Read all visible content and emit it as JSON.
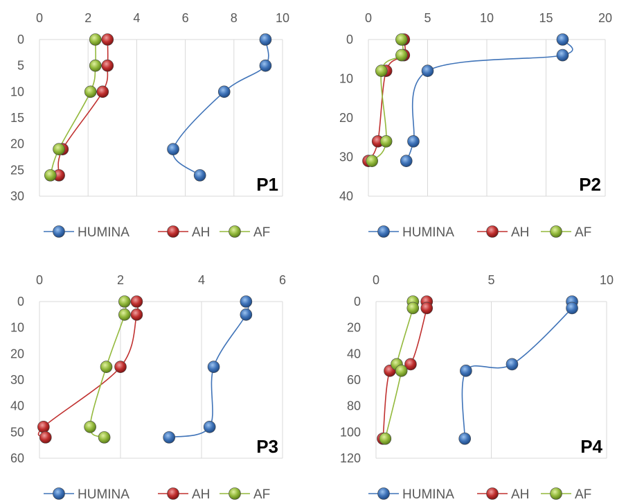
{
  "series_names": [
    "HUMINA",
    "AH",
    "AF"
  ],
  "colors": {
    "HUMINA": "#3f73b8",
    "AH": "#c0302f",
    "AF": "#93b93c",
    "grid": "#d9d9d9"
  },
  "chart_data": [
    {
      "type": "scatter",
      "panel_label": "P1",
      "x_axis": {
        "position": "top",
        "min": 0,
        "max": 10,
        "ticks": [
          0,
          2,
          4,
          6,
          8,
          10
        ]
      },
      "y_axis": {
        "inverted": true,
        "min": 0,
        "max": 30,
        "ticks": [
          0,
          5,
          10,
          15,
          20,
          25,
          30
        ]
      },
      "grid": "vertical",
      "legend": "bottom",
      "series": [
        {
          "name": "HUMINA",
          "points": [
            [
              9.3,
              0
            ],
            [
              9.3,
              5
            ],
            [
              7.6,
              10
            ],
            [
              5.5,
              21
            ],
            [
              6.6,
              26
            ]
          ]
        },
        {
          "name": "AH",
          "points": [
            [
              2.8,
              0
            ],
            [
              2.8,
              5
            ],
            [
              2.6,
              10
            ],
            [
              0.95,
              21
            ],
            [
              0.8,
              26
            ]
          ]
        },
        {
          "name": "AF",
          "points": [
            [
              2.3,
              0
            ],
            [
              2.3,
              5
            ],
            [
              2.1,
              10
            ],
            [
              0.8,
              21
            ],
            [
              0.45,
              26
            ]
          ]
        }
      ]
    },
    {
      "type": "scatter",
      "panel_label": "P2",
      "x_axis": {
        "position": "top",
        "min": 0,
        "max": 20,
        "ticks": [
          0,
          5,
          10,
          15,
          20
        ]
      },
      "y_axis": {
        "inverted": true,
        "min": 0,
        "max": 40,
        "ticks": [
          0,
          10,
          20,
          30,
          40
        ]
      },
      "grid": "vertical",
      "legend": "bottom",
      "series": [
        {
          "name": "HUMINA",
          "points": [
            [
              16.4,
              0
            ],
            [
              16.4,
              4
            ],
            [
              5.0,
              8
            ],
            [
              3.8,
              26
            ],
            [
              3.2,
              31
            ]
          ]
        },
        {
          "name": "AH",
          "points": [
            [
              3.0,
              0
            ],
            [
              3.0,
              4
            ],
            [
              1.5,
              8
            ],
            [
              0.8,
              26
            ],
            [
              0.0,
              31
            ]
          ]
        },
        {
          "name": "AF",
          "points": [
            [
              2.8,
              0
            ],
            [
              2.8,
              4
            ],
            [
              1.1,
              8
            ],
            [
              1.5,
              26
            ],
            [
              0.3,
              31
            ]
          ]
        }
      ]
    },
    {
      "type": "scatter",
      "panel_label": "P3",
      "x_axis": {
        "position": "top",
        "min": 0,
        "max": 6,
        "ticks": [
          0,
          2,
          4,
          6
        ]
      },
      "y_axis": {
        "inverted": true,
        "min": 0,
        "max": 60,
        "ticks": [
          0,
          10,
          20,
          30,
          40,
          50,
          60
        ]
      },
      "grid": "vertical",
      "legend": "bottom",
      "series": [
        {
          "name": "HUMINA",
          "points": [
            [
              5.1,
              0
            ],
            [
              5.1,
              5
            ],
            [
              4.3,
              25
            ],
            [
              4.2,
              48
            ],
            [
              3.2,
              52
            ]
          ]
        },
        {
          "name": "AH",
          "points": [
            [
              2.4,
              0
            ],
            [
              2.4,
              5
            ],
            [
              2.0,
              25
            ],
            [
              0.1,
              48
            ],
            [
              0.15,
              52
            ]
          ]
        },
        {
          "name": "AF",
          "points": [
            [
              2.1,
              0
            ],
            [
              2.1,
              5
            ],
            [
              1.65,
              25
            ],
            [
              1.25,
              48
            ],
            [
              1.6,
              52
            ]
          ]
        }
      ]
    },
    {
      "type": "scatter",
      "panel_label": "P4",
      "x_axis": {
        "position": "top",
        "min": 0,
        "max": 10,
        "ticks": [
          0,
          5,
          10
        ]
      },
      "y_axis": {
        "inverted": true,
        "min": 0,
        "max": 120,
        "ticks": [
          0,
          20,
          40,
          60,
          80,
          100,
          120
        ]
      },
      "grid": "vertical",
      "legend": "bottom",
      "series": [
        {
          "name": "HUMINA",
          "points": [
            [
              8.5,
              0
            ],
            [
              8.5,
              5
            ],
            [
              5.9,
              48
            ],
            [
              3.9,
              53
            ],
            [
              3.85,
              105
            ]
          ]
        },
        {
          "name": "AH",
          "points": [
            [
              2.2,
              0
            ],
            [
              2.2,
              5
            ],
            [
              1.5,
              48
            ],
            [
              0.6,
              53
            ],
            [
              0.3,
              105
            ]
          ]
        },
        {
          "name": "AF",
          "points": [
            [
              1.6,
              0
            ],
            [
              1.6,
              5
            ],
            [
              0.9,
              48
            ],
            [
              1.1,
              53
            ],
            [
              0.4,
              105
            ]
          ]
        }
      ]
    }
  ]
}
